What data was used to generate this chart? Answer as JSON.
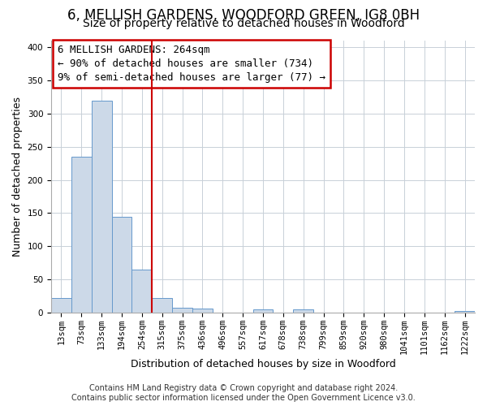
{
  "title": "6, MELLISH GARDENS, WOODFORD GREEN, IG8 0BH",
  "subtitle": "Size of property relative to detached houses in Woodford",
  "xlabel": "Distribution of detached houses by size in Woodford",
  "ylabel": "Number of detached properties",
  "bar_color": "#ccd9e8",
  "bar_edge_color": "#6699cc",
  "categories": [
    "13sqm",
    "73sqm",
    "133sqm",
    "194sqm",
    "254sqm",
    "315sqm",
    "375sqm",
    "436sqm",
    "496sqm",
    "557sqm",
    "617sqm",
    "678sqm",
    "738sqm",
    "799sqm",
    "859sqm",
    "920sqm",
    "980sqm",
    "1041sqm",
    "1101sqm",
    "1162sqm",
    "1222sqm"
  ],
  "values": [
    22,
    235,
    320,
    145,
    65,
    22,
    8,
    6,
    0,
    0,
    5,
    0,
    5,
    0,
    0,
    0,
    0,
    0,
    0,
    0,
    3
  ],
  "vline_pos": 4.5,
  "vline_color": "#cc0000",
  "annotation_box_text": "6 MELLISH GARDENS: 264sqm\n← 90% of detached houses are smaller (734)\n9% of semi-detached houses are larger (77) →",
  "ylim": [
    0,
    410
  ],
  "yticks": [
    0,
    50,
    100,
    150,
    200,
    250,
    300,
    350,
    400
  ],
  "footer_line1": "Contains HM Land Registry data © Crown copyright and database right 2024.",
  "footer_line2": "Contains public sector information licensed under the Open Government Licence v3.0.",
  "background_color": "#ffffff",
  "ax_background": "#ffffff",
  "grid_color": "#c8d0d8",
  "title_fontsize": 12,
  "subtitle_fontsize": 10,
  "tick_fontsize": 7.5,
  "annotation_fontsize": 9,
  "ylabel_fontsize": 9,
  "xlabel_fontsize": 9,
  "footer_fontsize": 7
}
